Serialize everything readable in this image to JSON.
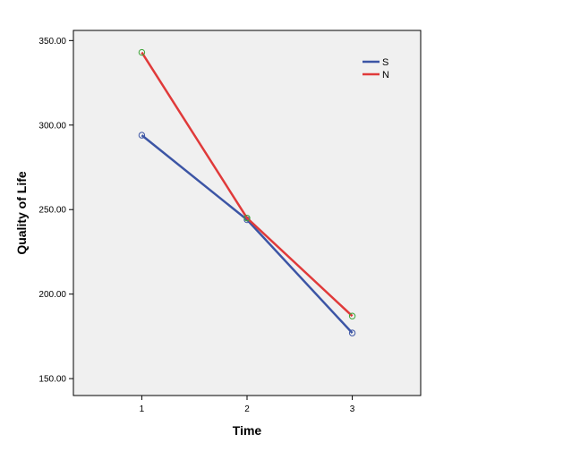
{
  "chart_data": {
    "type": "line",
    "title": "",
    "xlabel": "Time",
    "ylabel": "Quality of Life",
    "x": [
      1,
      2,
      3
    ],
    "x_tick_labels": [
      "1",
      "2",
      "3"
    ],
    "xlim": [
      0.35,
      3.65
    ],
    "ylim": [
      140,
      356
    ],
    "y_ticks": [
      150,
      200,
      250,
      300,
      350
    ],
    "y_tick_labels": [
      "150.00",
      "200.00",
      "250.00",
      "300.00",
      "350.00"
    ],
    "grid": false,
    "legend_position": "top-right",
    "series": [
      {
        "name": "S",
        "values": [
          294,
          244,
          177
        ],
        "color": "#3c55a5",
        "marker_color": "#3c55a5"
      },
      {
        "name": "N",
        "values": [
          343,
          245,
          187
        ],
        "color": "#e03a3a",
        "marker_color": "#3aa335"
      }
    ],
    "plot_background": "#f0f0f0"
  }
}
